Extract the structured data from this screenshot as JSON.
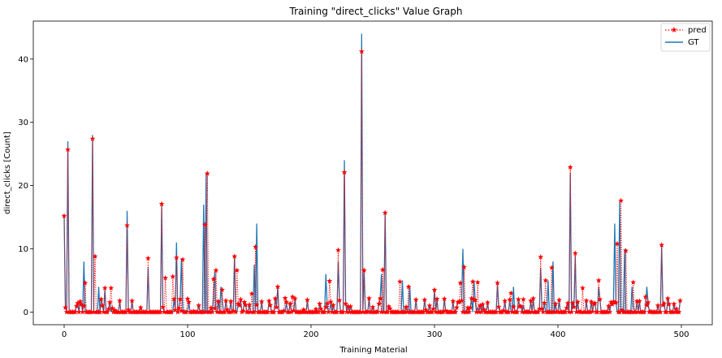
{
  "chart_data": {
    "type": "line",
    "title": "Training \"direct_clicks\" Value Graph",
    "xlabel": "Training Material",
    "ylabel": "direct_clicks [Count]",
    "xlim": [
      -25,
      525
    ],
    "ylim": [
      -2,
      46
    ],
    "xticks": [
      0,
      100,
      200,
      300,
      400,
      500
    ],
    "yticks": [
      0,
      10,
      20,
      30,
      40
    ],
    "legend": {
      "placement": "top-right",
      "entries": [
        "pred",
        "GT"
      ]
    },
    "colors": {
      "pred": "#ff0000",
      "gt": "#1f77b4"
    },
    "n_points": 500,
    "series": [
      {
        "name": "GT",
        "style": "solid-line",
        "points": [
          [
            0,
            15.2
          ],
          [
            3,
            27
          ],
          [
            16,
            8
          ],
          [
            23,
            28
          ],
          [
            28,
            4
          ],
          [
            33,
            3.5
          ],
          [
            51,
            16
          ],
          [
            68,
            7
          ],
          [
            79,
            17
          ],
          [
            91,
            11
          ],
          [
            95,
            8.5
          ],
          [
            113,
            17
          ],
          [
            115,
            22
          ],
          [
            122,
            6.5
          ],
          [
            127,
            4
          ],
          [
            138,
            9
          ],
          [
            154,
            7.5
          ],
          [
            156,
            14
          ],
          [
            173,
            4
          ],
          [
            212,
            6
          ],
          [
            222,
            8
          ],
          [
            227,
            24
          ],
          [
            241,
            44
          ],
          [
            243,
            6.5
          ],
          [
            257,
            6
          ],
          [
            260,
            15.7
          ],
          [
            274,
            5
          ],
          [
            280,
            4
          ],
          [
            300,
            3.5
          ],
          [
            323,
            10
          ],
          [
            332,
            5
          ],
          [
            351,
            4.5
          ],
          [
            364,
            4
          ],
          [
            386,
            7
          ],
          [
            392,
            5
          ],
          [
            396,
            8
          ],
          [
            410,
            22
          ],
          [
            414,
            9
          ],
          [
            433,
            4
          ],
          [
            446,
            14
          ],
          [
            450,
            17.5
          ],
          [
            454,
            10
          ],
          [
            460,
            4
          ],
          [
            472,
            4
          ],
          [
            484,
            10.5
          ]
        ]
      },
      {
        "name": "pred",
        "style": "dotted-star",
        "points": [
          [
            0,
            15.2
          ],
          [
            3,
            25.7
          ],
          [
            17,
            4.6
          ],
          [
            23,
            27.4
          ],
          [
            25,
            8.8
          ],
          [
            33,
            3.8
          ],
          [
            38,
            3.8
          ],
          [
            51,
            13.7
          ],
          [
            68,
            8.5
          ],
          [
            79,
            17.1
          ],
          [
            82,
            5.4
          ],
          [
            88,
            5.6
          ],
          [
            91,
            8.6
          ],
          [
            96,
            8.3
          ],
          [
            100,
            2.1
          ],
          [
            114,
            13.8
          ],
          [
            116,
            21.9
          ],
          [
            121,
            5.2
          ],
          [
            123,
            6.6
          ],
          [
            128,
            3.5
          ],
          [
            138,
            8.8
          ],
          [
            140,
            6.6
          ],
          [
            152,
            2.9
          ],
          [
            155,
            10.3
          ],
          [
            173,
            4
          ],
          [
            179,
            2.2
          ],
          [
            185,
            2.4
          ],
          [
            215,
            4.9
          ],
          [
            222,
            9.8
          ],
          [
            227,
            22.1
          ],
          [
            241,
            41.2
          ],
          [
            243,
            6.6
          ],
          [
            258,
            6.7
          ],
          [
            260,
            15.7
          ],
          [
            272,
            4.8
          ],
          [
            279,
            4
          ],
          [
            300,
            3.5
          ],
          [
            321,
            4.6
          ],
          [
            324,
            7.1
          ],
          [
            331,
            4.8
          ],
          [
            335,
            4.7
          ],
          [
            351,
            4.6
          ],
          [
            362,
            3
          ],
          [
            372,
            2
          ],
          [
            386,
            8.7
          ],
          [
            390,
            5
          ],
          [
            395,
            7
          ],
          [
            410,
            22.9
          ],
          [
            414,
            9.3
          ],
          [
            420,
            3.8
          ],
          [
            433,
            5
          ],
          [
            448,
            10.8
          ],
          [
            451,
            17.6
          ],
          [
            455,
            9.7
          ],
          [
            461,
            4.7
          ],
          [
            471,
            2.4
          ],
          [
            484,
            10.6
          ]
        ]
      }
    ]
  }
}
